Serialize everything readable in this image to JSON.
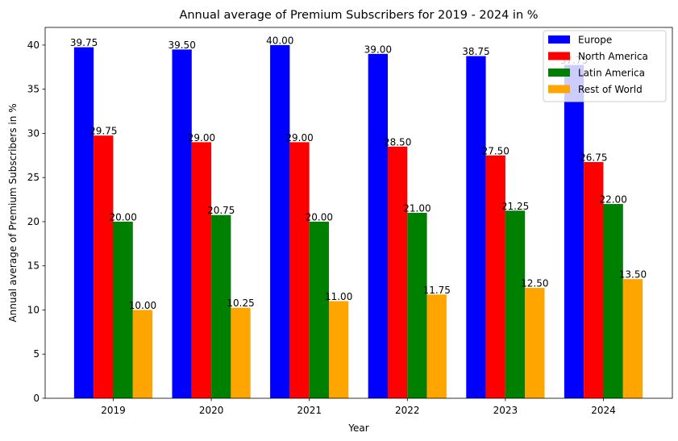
{
  "chart_data": {
    "type": "bar",
    "title": "Annual average of Premium Subscribers for 2019 - 2024 in %",
    "xlabel": "Year",
    "ylabel": "Annual average of Premium Subscribers in %",
    "categories": [
      "2019",
      "2020",
      "2021",
      "2022",
      "2023",
      "2024"
    ],
    "ylim": [
      0,
      42
    ],
    "yticks": [
      0,
      5,
      10,
      15,
      20,
      25,
      30,
      35,
      40
    ],
    "grid": false,
    "legend_position": "top-right",
    "series": [
      {
        "name": "Europe",
        "color": "#0000ff",
        "values": [
          39.75,
          39.5,
          40.0,
          39.0,
          38.75,
          37.75
        ],
        "labels": [
          "39.75",
          "39.50",
          "40.00",
          "39.00",
          "38.75",
          "37.75"
        ]
      },
      {
        "name": "North America",
        "color": "#ff0000",
        "values": [
          29.75,
          29.0,
          29.0,
          28.5,
          27.5,
          26.75
        ],
        "labels": [
          "29.75",
          "29.00",
          "29.00",
          "28.50",
          "27.50",
          "26.75"
        ]
      },
      {
        "name": "Latin America",
        "color": "#008000",
        "values": [
          20.0,
          20.75,
          20.0,
          21.0,
          21.25,
          22.0
        ],
        "labels": [
          "20.00",
          "20.75",
          "20.00",
          "21.00",
          "21.25",
          "22.00"
        ]
      },
      {
        "name": "Rest of World",
        "color": "#ffa500",
        "values": [
          10.0,
          10.25,
          11.0,
          11.75,
          12.5,
          13.5
        ],
        "labels": [
          "10.00",
          "10.25",
          "11.00",
          "11.75",
          "12.50",
          "13.50"
        ]
      }
    ]
  }
}
